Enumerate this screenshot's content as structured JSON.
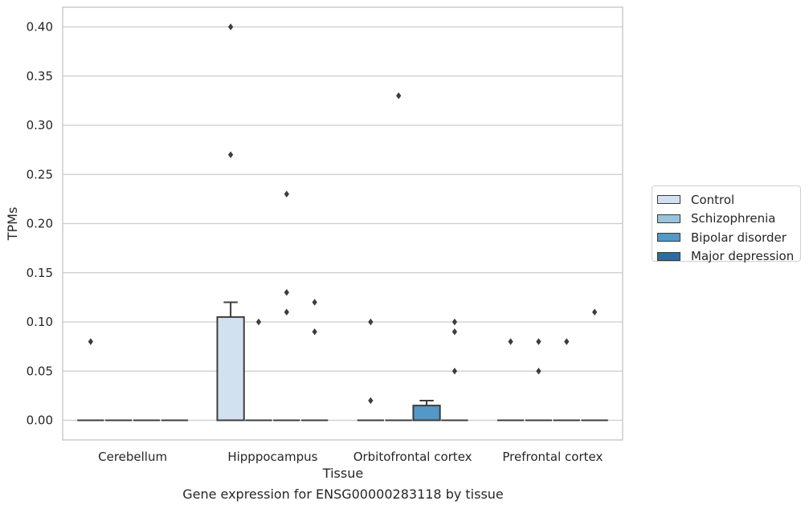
{
  "chart_data": {
    "type": "box",
    "title": "Gene expression for ENSG00000283118 by tissue",
    "xlabel": "Tissue",
    "ylabel": "TPMs",
    "ylim": [
      -0.02,
      0.42
    ],
    "yticks": [
      "0.00",
      "0.05",
      "0.10",
      "0.15",
      "0.20",
      "0.25",
      "0.30",
      "0.35",
      "0.40"
    ],
    "grid": true,
    "legend_position": "right",
    "categories": [
      "Cerebellum",
      "Hipppocampus",
      "Orbitofrontal cortex",
      "Prefrontal cortex"
    ],
    "groups": [
      {
        "name": "Control",
        "color": "#d2e1f0"
      },
      {
        "name": "Schizophrenia",
        "color": "#9ac3dc"
      },
      {
        "name": "Bipolar disorder",
        "color": "#5398c6"
      },
      {
        "name": "Major depression",
        "color": "#2b6ca6"
      }
    ],
    "boxes": [
      {
        "category": "Cerebellum",
        "group": "Control",
        "q1": 0,
        "median": 0,
        "q3": 0,
        "whisker_low": 0,
        "whisker_high": 0,
        "outliers": [
          0.08
        ]
      },
      {
        "category": "Cerebellum",
        "group": "Schizophrenia",
        "q1": 0,
        "median": 0,
        "q3": 0,
        "whisker_low": 0,
        "whisker_high": 0,
        "outliers": []
      },
      {
        "category": "Cerebellum",
        "group": "Bipolar disorder",
        "q1": 0,
        "median": 0,
        "q3": 0,
        "whisker_low": 0,
        "whisker_high": 0,
        "outliers": []
      },
      {
        "category": "Cerebellum",
        "group": "Major depression",
        "q1": 0,
        "median": 0,
        "q3": 0,
        "whisker_low": 0,
        "whisker_high": 0,
        "outliers": []
      },
      {
        "category": "Hipppocampus",
        "group": "Control",
        "q1": 0,
        "median": 0,
        "q3": 0.105,
        "whisker_low": 0,
        "whisker_high": 0.12,
        "outliers": [
          0.27,
          0.4
        ]
      },
      {
        "category": "Hipppocampus",
        "group": "Schizophrenia",
        "q1": 0,
        "median": 0,
        "q3": 0,
        "whisker_low": 0,
        "whisker_high": 0,
        "outliers": [
          0.1
        ]
      },
      {
        "category": "Hipppocampus",
        "group": "Bipolar disorder",
        "q1": 0,
        "median": 0,
        "q3": 0,
        "whisker_low": 0,
        "whisker_high": 0,
        "outliers": [
          0.11,
          0.13,
          0.23
        ]
      },
      {
        "category": "Hipppocampus",
        "group": "Major depression",
        "q1": 0,
        "median": 0,
        "q3": 0,
        "whisker_low": 0,
        "whisker_high": 0,
        "outliers": [
          0.09,
          0.12
        ]
      },
      {
        "category": "Orbitofrontal cortex",
        "group": "Control",
        "q1": 0,
        "median": 0,
        "q3": 0,
        "whisker_low": 0,
        "whisker_high": 0,
        "outliers": [
          0.02,
          0.1
        ]
      },
      {
        "category": "Orbitofrontal cortex",
        "group": "Schizophrenia",
        "q1": 0,
        "median": 0,
        "q3": 0,
        "whisker_low": 0,
        "whisker_high": 0,
        "outliers": [
          0.33
        ]
      },
      {
        "category": "Orbitofrontal cortex",
        "group": "Bipolar disorder",
        "q1": 0,
        "median": 0,
        "q3": 0.015,
        "whisker_low": 0,
        "whisker_high": 0.02,
        "outliers": []
      },
      {
        "category": "Orbitofrontal cortex",
        "group": "Major depression",
        "q1": 0,
        "median": 0,
        "q3": 0,
        "whisker_low": 0,
        "whisker_high": 0,
        "outliers": [
          0.05,
          0.09,
          0.1
        ]
      },
      {
        "category": "Prefrontal cortex",
        "group": "Control",
        "q1": 0,
        "median": 0,
        "q3": 0,
        "whisker_low": 0,
        "whisker_high": 0,
        "outliers": [
          0.08
        ]
      },
      {
        "category": "Prefrontal cortex",
        "group": "Schizophrenia",
        "q1": 0,
        "median": 0,
        "q3": 0,
        "whisker_low": 0,
        "whisker_high": 0,
        "outliers": [
          0.05,
          0.08
        ]
      },
      {
        "category": "Prefrontal cortex",
        "group": "Bipolar disorder",
        "q1": 0,
        "median": 0,
        "q3": 0,
        "whisker_low": 0,
        "whisker_high": 0,
        "outliers": [
          0.08
        ]
      },
      {
        "category": "Prefrontal cortex",
        "group": "Major depression",
        "q1": 0,
        "median": 0,
        "q3": 0,
        "whisker_low": 0,
        "whisker_high": 0,
        "outliers": [
          0.11
        ]
      }
    ]
  }
}
